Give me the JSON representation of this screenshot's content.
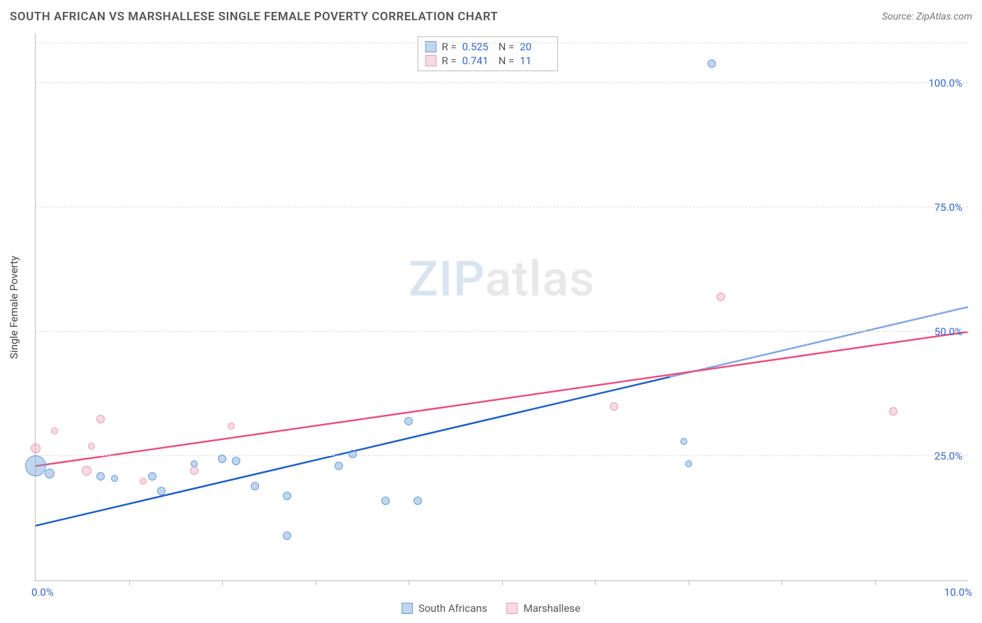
{
  "title": "SOUTH AFRICAN VS MARSHALLESE SINGLE FEMALE POVERTY CORRELATION CHART",
  "source_label": "Source: ZipAtlas.com",
  "yaxis_label": "Single Female Poverty",
  "watermark": {
    "part1": "ZIP",
    "part2": "atlas"
  },
  "chart": {
    "type": "scatter",
    "xlim": [
      0,
      10
    ],
    "ylim": [
      0,
      110
    ],
    "background_color": "#ffffff",
    "grid_color": "#dddddd",
    "axis_color": "#bbbbbb",
    "ygrid": [
      {
        "value": 25,
        "label": "25.0%"
      },
      {
        "value": 50,
        "label": "50.0%"
      },
      {
        "value": 75,
        "label": "75.0%"
      },
      {
        "value": 100,
        "label": "100.0%"
      },
      {
        "value": 108,
        "label": ""
      }
    ],
    "xticks": [
      1,
      2,
      3,
      4,
      5,
      6,
      7,
      8,
      9
    ],
    "xtick_labels": {
      "min": "0.0%",
      "max": "10.0%"
    },
    "series": [
      {
        "name": "South Africans",
        "fill_color": "rgba(115,165,220,0.45)",
        "stroke_color": "#6a9bd8",
        "line_color": "#1f5fc4",
        "line_width": 2.5,
        "r_value": "0.525",
        "n_value": "20",
        "trend": {
          "x1": 0,
          "y1": 11,
          "x2": 10,
          "y2": 55,
          "dash_from_x": 6.8
        },
        "points": [
          {
            "x": 0.0,
            "y": 23,
            "r": 15
          },
          {
            "x": 0.15,
            "y": 21.5,
            "r": 7
          },
          {
            "x": 0.7,
            "y": 21,
            "r": 6
          },
          {
            "x": 0.85,
            "y": 20.5,
            "r": 5
          },
          {
            "x": 1.25,
            "y": 21,
            "r": 6
          },
          {
            "x": 1.35,
            "y": 18,
            "r": 6
          },
          {
            "x": 1.7,
            "y": 23.5,
            "r": 5
          },
          {
            "x": 2.0,
            "y": 24.5,
            "r": 6
          },
          {
            "x": 2.15,
            "y": 24,
            "r": 6
          },
          {
            "x": 2.35,
            "y": 19,
            "r": 6
          },
          {
            "x": 2.7,
            "y": 9,
            "r": 6
          },
          {
            "x": 2.7,
            "y": 17,
            "r": 6
          },
          {
            "x": 3.25,
            "y": 23,
            "r": 6
          },
          {
            "x": 3.4,
            "y": 25.5,
            "r": 6
          },
          {
            "x": 3.75,
            "y": 16,
            "r": 6
          },
          {
            "x": 4.0,
            "y": 32,
            "r": 6
          },
          {
            "x": 4.1,
            "y": 16,
            "r": 6
          },
          {
            "x": 6.95,
            "y": 28,
            "r": 5
          },
          {
            "x": 7.0,
            "y": 23.5,
            "r": 5
          },
          {
            "x": 7.25,
            "y": 104,
            "r": 6
          }
        ]
      },
      {
        "name": "Marshallese",
        "fill_color": "rgba(235,150,175,0.35)",
        "stroke_color": "#e89cb2",
        "line_color": "#e85080",
        "line_width": 2.5,
        "r_value": "0.741",
        "n_value": "11",
        "trend": {
          "x1": 0,
          "y1": 23,
          "x2": 10,
          "y2": 50,
          "dash_from_x": 10
        },
        "points": [
          {
            "x": 0.0,
            "y": 26.5,
            "r": 7
          },
          {
            "x": 0.2,
            "y": 30,
            "r": 5
          },
          {
            "x": 0.55,
            "y": 22,
            "r": 7
          },
          {
            "x": 0.6,
            "y": 27,
            "r": 5
          },
          {
            "x": 0.7,
            "y": 32.5,
            "r": 6
          },
          {
            "x": 1.15,
            "y": 20,
            "r": 5
          },
          {
            "x": 1.7,
            "y": 22,
            "r": 6
          },
          {
            "x": 2.1,
            "y": 31,
            "r": 5
          },
          {
            "x": 6.2,
            "y": 35,
            "r": 6
          },
          {
            "x": 7.35,
            "y": 57,
            "r": 6
          },
          {
            "x": 9.2,
            "y": 34,
            "r": 6
          }
        ]
      }
    ]
  },
  "stats_box": {
    "r_label": "R =",
    "n_label": "N ="
  }
}
